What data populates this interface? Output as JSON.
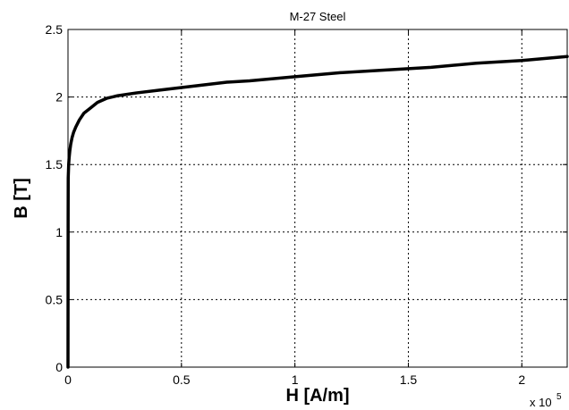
{
  "chart_data": {
    "type": "line",
    "title": "M-27 Steel",
    "xlabel": "H [A/m]",
    "ylabel": "B [T]",
    "x_multiplier": {
      "base": "x 10",
      "exponent": "5"
    },
    "xlim": [
      0,
      2.2
    ],
    "ylim": [
      0,
      2.5
    ],
    "x_ticks": [
      0,
      0.5,
      1,
      1.5,
      2
    ],
    "x_tick_labels": [
      "0",
      "0.5",
      "1",
      "1.5",
      "2"
    ],
    "y_ticks": [
      0,
      0.5,
      1,
      1.5,
      2,
      2.5
    ],
    "y_tick_labels": [
      "0",
      "0.5",
      "1",
      "1.5",
      "2",
      "2.5"
    ],
    "grid": true,
    "grid_style": "dotted",
    "line_color": "#000000",
    "series": [
      {
        "x": [
          0,
          0.0003,
          0.0006,
          0.001,
          0.002,
          0.003,
          0.005,
          0.008,
          0.012,
          0.018,
          0.025,
          0.035,
          0.05,
          0.07,
          0.1,
          0.13,
          0.17,
          0.22,
          0.3,
          0.4,
          0.5,
          0.6,
          0.7,
          0.8,
          1.0,
          1.2,
          1.4,
          1.6,
          1.8,
          2.0,
          2.2
        ],
        "y": [
          0,
          0.6,
          1.1,
          1.4,
          1.45,
          1.5,
          1.55,
          1.6,
          1.65,
          1.7,
          1.74,
          1.78,
          1.83,
          1.88,
          1.92,
          1.96,
          1.99,
          2.01,
          2.03,
          2.05,
          2.07,
          2.09,
          2.11,
          2.12,
          2.15,
          2.18,
          2.2,
          2.22,
          2.25,
          2.27,
          2.3
        ]
      }
    ]
  }
}
